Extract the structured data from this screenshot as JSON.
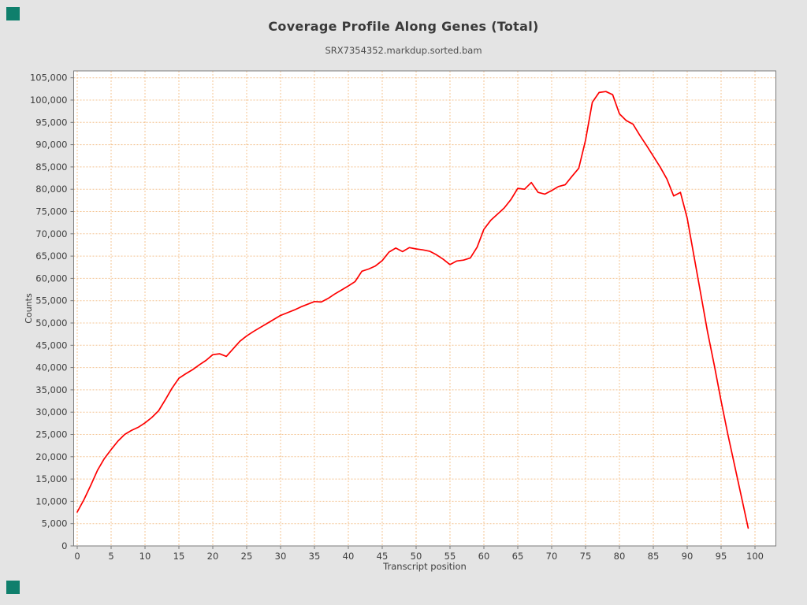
{
  "page": {
    "background": "#e4e4e4"
  },
  "header": {
    "title": "Coverage Profile Along Genes (Total)",
    "subtitle": "SRX7354352.markdup.sorted.bam"
  },
  "decorations": {
    "corner_marker_color": "#0f7f6c"
  },
  "chart_data": {
    "type": "line",
    "title": "Coverage Profile Along Genes (Total)",
    "subtitle": "SRX7354352.markdup.sorted.bam",
    "xlabel": "Transcript position",
    "ylabel": "Counts",
    "xlim": [
      0,
      100
    ],
    "ylim": [
      0,
      106000
    ],
    "x_ticks": [
      0,
      5,
      10,
      15,
      20,
      25,
      30,
      35,
      40,
      45,
      50,
      55,
      60,
      65,
      70,
      75,
      80,
      85,
      90,
      95,
      100
    ],
    "y_ticks": [
      0,
      5000,
      10000,
      15000,
      20000,
      25000,
      30000,
      35000,
      40000,
      45000,
      50000,
      55000,
      60000,
      65000,
      70000,
      75000,
      80000,
      85000,
      90000,
      95000,
      100000,
      105000
    ],
    "grid": true,
    "legend": "none",
    "colors": {
      "line": "#fe0000",
      "grid": "#f4c493",
      "plot_background": "#ffffff",
      "frame": "#7d7d7d",
      "tick_text": "#3d3d3d"
    },
    "x": [
      0,
      1,
      2,
      3,
      4,
      5,
      6,
      7,
      8,
      9,
      10,
      11,
      12,
      13,
      14,
      15,
      16,
      17,
      18,
      19,
      20,
      21,
      22,
      23,
      24,
      25,
      26,
      27,
      28,
      29,
      30,
      31,
      32,
      33,
      34,
      35,
      36,
      37,
      38,
      39,
      40,
      41,
      42,
      43,
      44,
      45,
      46,
      47,
      48,
      49,
      50,
      51,
      52,
      53,
      54,
      55,
      56,
      57,
      58,
      59,
      60,
      61,
      62,
      63,
      64,
      65,
      66,
      67,
      68,
      69,
      70,
      71,
      72,
      73,
      74,
      75,
      76,
      77,
      78,
      79,
      80,
      81,
      82,
      83,
      84,
      85,
      86,
      87,
      88,
      89,
      90,
      91,
      92,
      93,
      94,
      95,
      96,
      97,
      98,
      99
    ],
    "series": [
      {
        "name": "SRX7354352.markdup.sorted.bam",
        "values": [
          7600,
          10400,
          13600,
          17000,
          19600,
          21600,
          23500,
          25000,
          25900,
          26600,
          27600,
          28800,
          30300,
          32800,
          35400,
          37600,
          38600,
          39500,
          40600,
          41600,
          42900,
          43100,
          42500,
          44200,
          45900,
          47100,
          48100,
          49000,
          49900,
          50800,
          51700,
          52300,
          52900,
          53600,
          54200,
          54800,
          54700,
          55500,
          56500,
          57400,
          58300,
          59300,
          61600,
          62100,
          62800,
          64000,
          65900,
          66800,
          66000,
          66900,
          66600,
          66400,
          66100,
          65300,
          64300,
          63100,
          63900,
          64100,
          64600,
          67000,
          71000,
          73000,
          74400,
          75800,
          77700,
          80200,
          80000,
          81500,
          79300,
          78900,
          79700,
          80600,
          81000,
          82900,
          84700,
          91000,
          99500,
          101700,
          101900,
          101200,
          96900,
          95400,
          94600,
          92100,
          89800,
          87400,
          85000,
          82300,
          78500,
          79300,
          73500,
          65000,
          56500,
          48000,
          40500,
          32500,
          25000,
          18000,
          11000,
          4000
        ]
      }
    ]
  }
}
